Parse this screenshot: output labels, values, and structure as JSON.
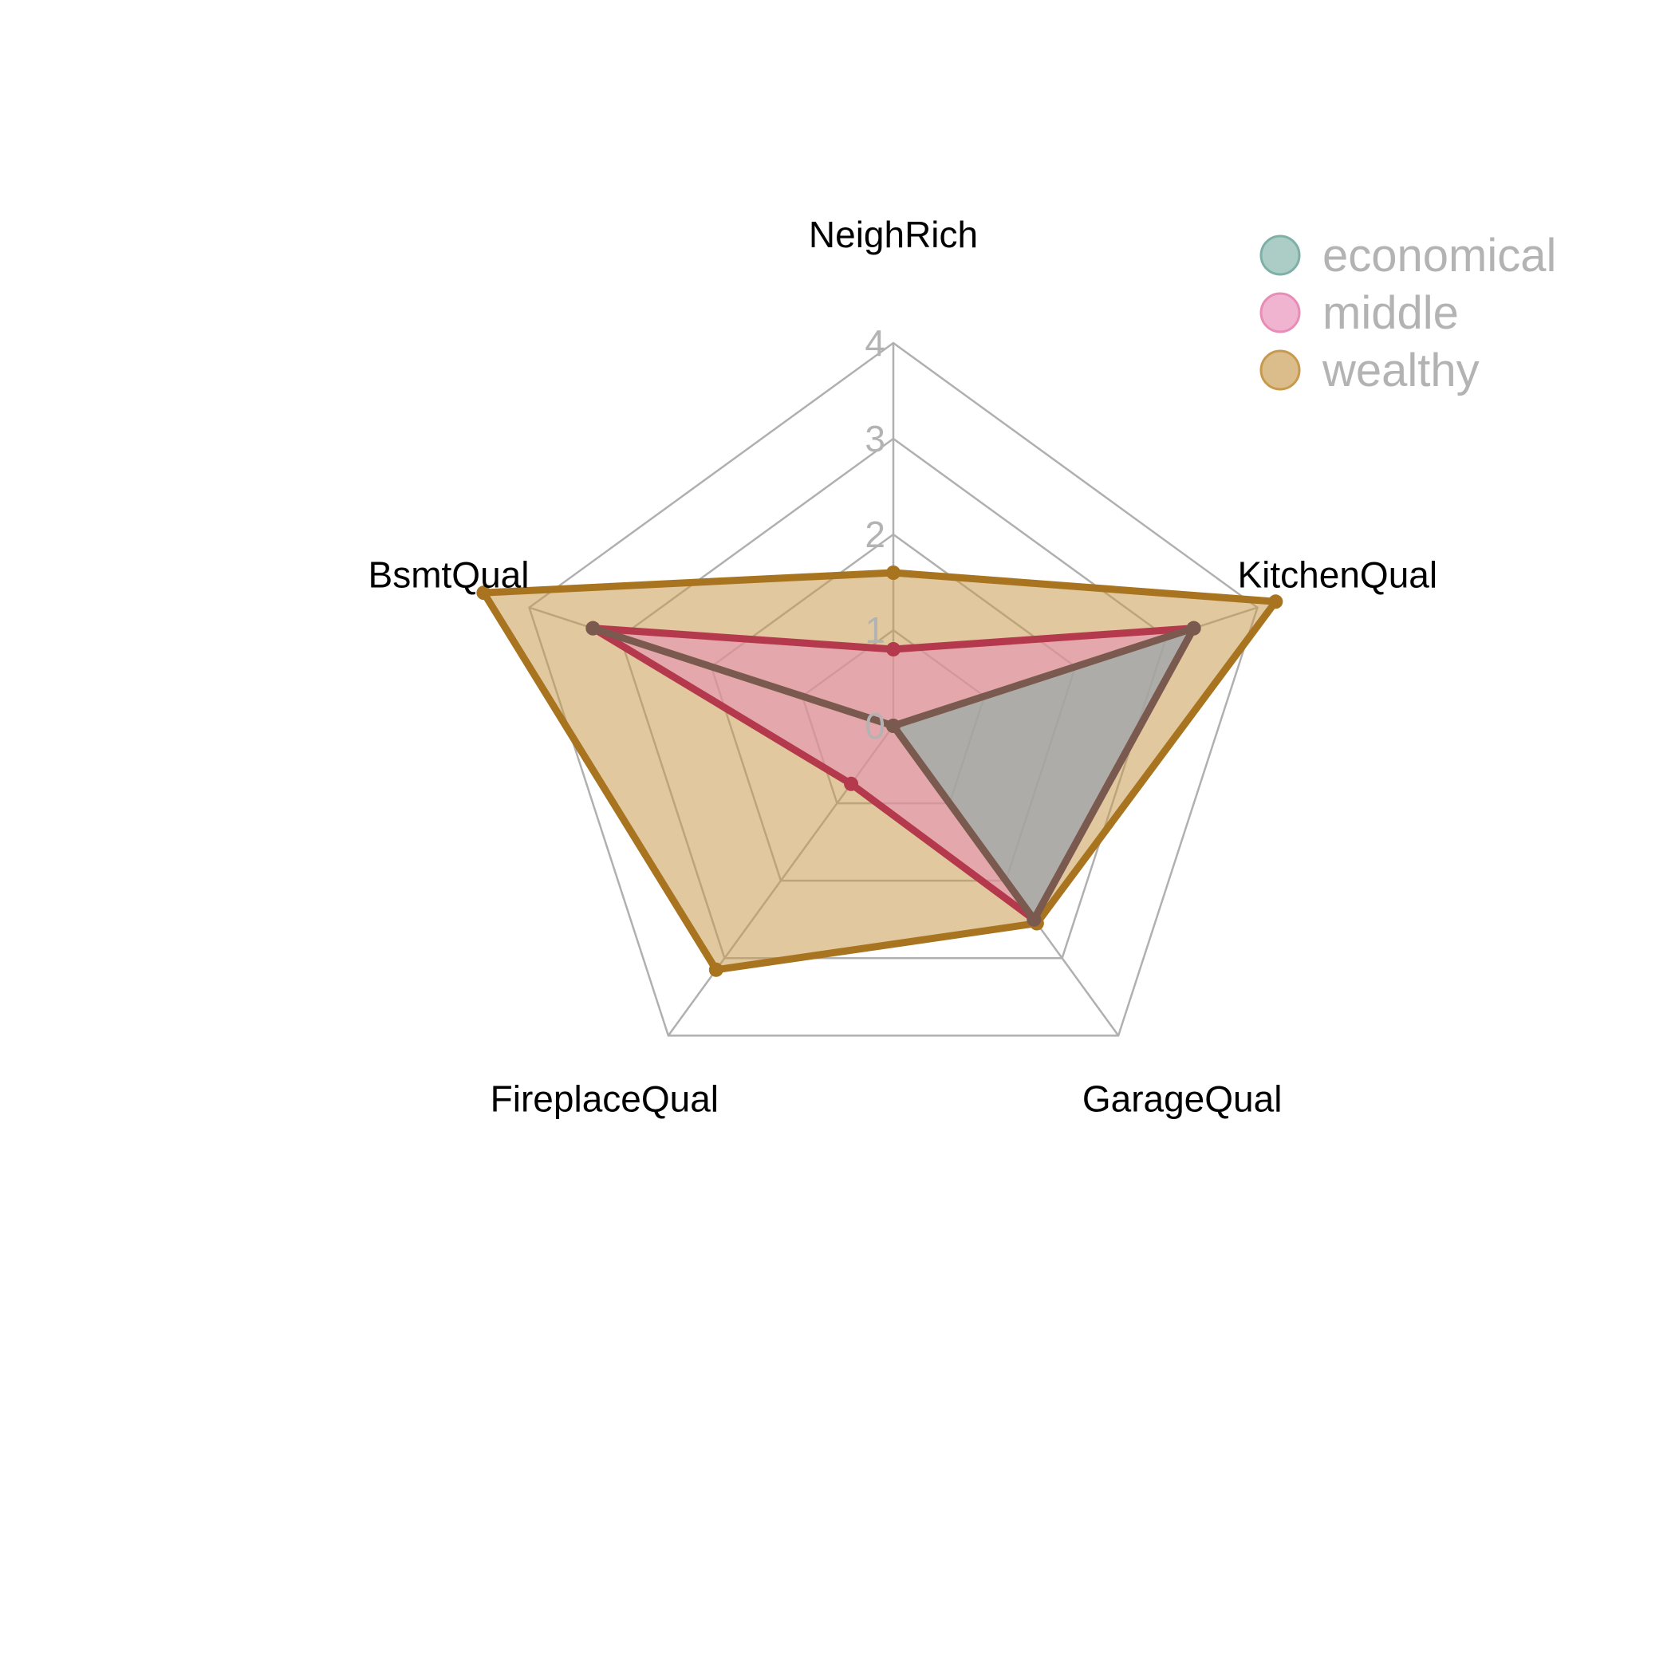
{
  "chart_data": {
    "type": "radar",
    "axes": [
      "NeighRich",
      "KitchenQual",
      "GarageQual",
      "FireplaceQual",
      "BsmtQual"
    ],
    "rlim": [
      0,
      4
    ],
    "ticks": [
      "0",
      "1",
      "2",
      "3",
      "4"
    ],
    "grid": true,
    "legend_position": "top-right",
    "series": [
      {
        "name": "economical",
        "values": [
          0,
          3.3,
          2.5,
          0,
          3.3
        ],
        "fill": "#7fb0a8",
        "stroke": "#7a5a4e"
      },
      {
        "name": "middle",
        "values": [
          0.8,
          3.3,
          2.5,
          0.75,
          3.3
        ],
        "fill": "#e88cb8",
        "stroke": "#b5394d"
      },
      {
        "name": "wealthy",
        "values": [
          1.6,
          4.2,
          2.55,
          3.15,
          4.5
        ],
        "fill": "#c89a4e",
        "stroke": "#a8741f"
      }
    ]
  }
}
